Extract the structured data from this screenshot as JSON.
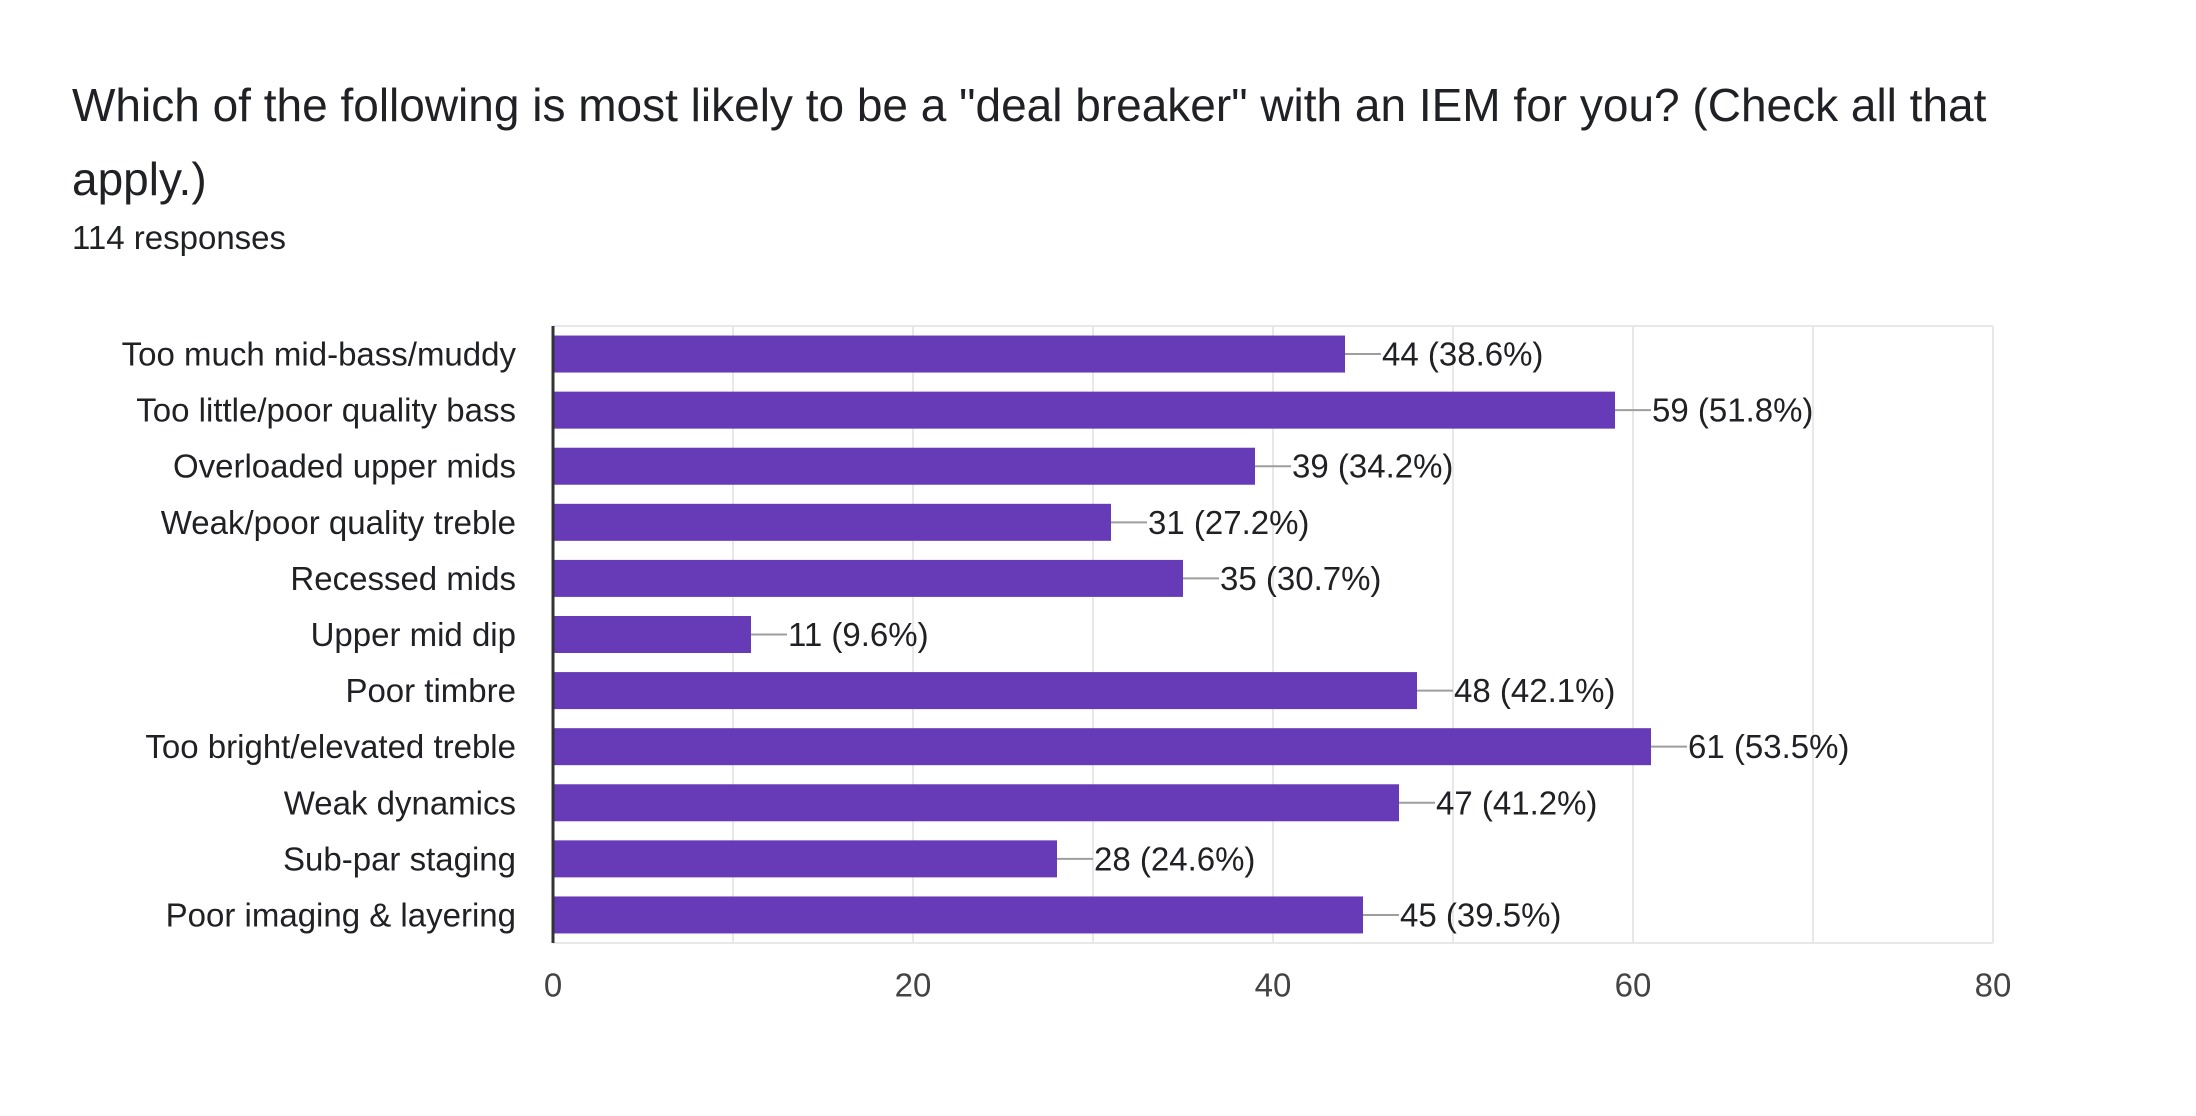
{
  "header": {
    "title": "Which of the following is most likely to be a \"deal breaker\" with an IEM for you?  (Check all that apply.)",
    "responses": "114 responses"
  },
  "colors": {
    "bar": "#673ab7",
    "grid": "#e8e8e8",
    "axis": "#333333",
    "leader": "#9e9e9e"
  },
  "chart_data": {
    "type": "bar",
    "orientation": "horizontal",
    "categories": [
      "Too much mid-bass/muddy",
      "Too little/poor quality bass",
      "Overloaded upper mids",
      "Weak/poor quality treble",
      "Recessed mids",
      "Upper mid dip",
      "Poor timbre",
      "Too bright/elevated treble",
      "Weak dynamics",
      "Sub-par staging",
      "Poor imaging & layering"
    ],
    "values": [
      44,
      59,
      39,
      31,
      35,
      11,
      48,
      61,
      47,
      28,
      45
    ],
    "data_labels": [
      "44 (38.6%)",
      "59 (51.8%)",
      "39 (34.2%)",
      "31 (27.2%)",
      "35 (30.7%)",
      "11 (9.6%)",
      "48 (42.1%)",
      "61 (53.5%)",
      "47 (41.2%)",
      "28 (24.6%)",
      "45 (39.5%)"
    ],
    "xlim": [
      0,
      80
    ],
    "xticks": [
      0,
      20,
      40,
      60,
      80
    ],
    "grid": true,
    "legend": "none"
  }
}
